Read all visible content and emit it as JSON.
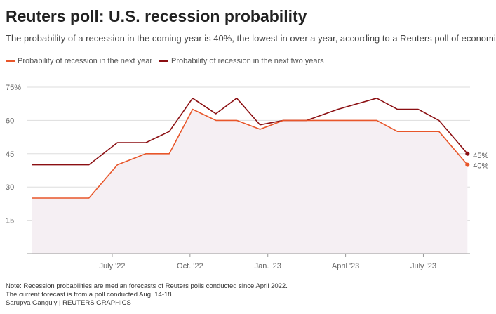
{
  "header": {
    "title": "Reuters poll: U.S. recession probability",
    "subtitle": "The probability of a recession in the coming year is 40%, the lowest in over a year, according to a Reuters poll of economists."
  },
  "colors": {
    "next_year": "#e8562a",
    "two_years": "#8b0f12",
    "area_fill": "#f5eff3",
    "grid": "#dddddd",
    "axis": "#999999"
  },
  "chart_data": {
    "type": "line",
    "title": "Reuters poll: U.S. recession probability",
    "xlabel": "",
    "ylabel": "",
    "ylim": [
      0,
      75
    ],
    "x_range": [
      "2022-04",
      "2023-08"
    ],
    "y_ticks": [
      "75%",
      "60",
      "45",
      "30",
      "15"
    ],
    "y_tick_values": [
      75,
      60,
      45,
      30,
      15
    ],
    "x_ticks": [
      "July '22",
      "Oct. '22",
      "Jan. '23",
      "April '23",
      "July '23"
    ],
    "x_tick_values": [
      3.3,
      6.3,
      9.3,
      12.3,
      15.3
    ],
    "grid": true,
    "legend_position": "top-left",
    "series": [
      {
        "name": "Probability of recession in the next year",
        "key": "next_year",
        "x": [
          0.2,
          2.4,
          3.5,
          4.6,
          5.5,
          6.4,
          7.3,
          8.1,
          9.0,
          9.9,
          10.8,
          12.0,
          13.5,
          14.3,
          15.1,
          15.9,
          17.0
        ],
        "values": [
          25,
          25,
          40,
          45,
          45,
          65,
          60,
          60,
          56,
          60,
          60,
          60,
          60,
          55,
          55,
          55,
          40
        ]
      },
      {
        "name": "Probability of recession in the next two years",
        "key": "two_years",
        "x": [
          0.2,
          2.4,
          3.5,
          4.6,
          5.5,
          6.4,
          7.3,
          8.1,
          9.0,
          9.9,
          10.8,
          12.0,
          13.5,
          14.3,
          15.1,
          15.9,
          17.0
        ],
        "values": [
          40,
          40,
          50,
          50,
          55,
          70,
          63,
          70,
          58,
          60,
          60,
          65,
          70,
          65,
          65,
          60,
          45
        ]
      }
    ],
    "end_labels": [
      "45%",
      "40%"
    ]
  },
  "footer": {
    "note": "Note: Recession probabilities are median forecasts of Reuters polls conducted since April 2022.",
    "current": "The current forecast is from a poll conducted Aug. 14-18.",
    "credit": "Sarupya Ganguly | REUTERS GRAPHICS"
  }
}
